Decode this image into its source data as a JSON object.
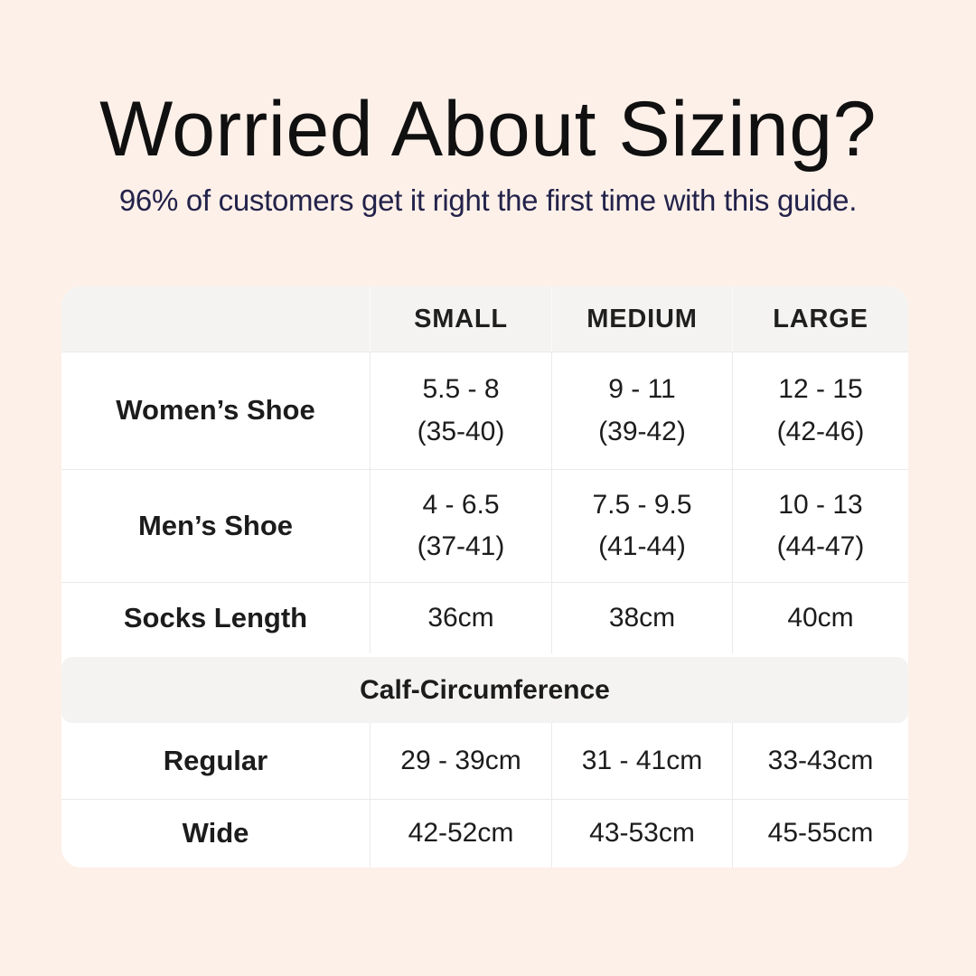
{
  "page": {
    "title": "Worried About Sizing?",
    "subtitle": "96% of customers get it right the first time with this guide.",
    "colors": {
      "background": "#fdf0e9",
      "table_background": "#ffffff",
      "header_band_background": "#f4f3f2",
      "divider": "#eceae8",
      "title_text": "#101010",
      "subtitle_text": "#22224a",
      "table_text": "#1c1c1c"
    }
  },
  "table": {
    "columns": [
      "",
      "SMALL",
      "MEDIUM",
      "LARGE"
    ],
    "rows": [
      {
        "label": "Women’s Shoe",
        "small": "5.5 - 8\n(35-40)",
        "medium": "9 - 11\n(39-42)",
        "large": "12 - 15\n(42-46)"
      },
      {
        "label": "Men’s Shoe",
        "small": "4 - 6.5\n(37-41)",
        "medium": "7.5 - 9.5\n(41-44)",
        "large": "10 - 13\n(44-47)"
      },
      {
        "label": "Socks Length",
        "small": "36cm",
        "medium": "38cm",
        "large": "40cm"
      }
    ],
    "section_header": "Calf-Circumference",
    "section_rows": [
      {
        "label": "Regular",
        "small": "29 - 39cm",
        "medium": "31 - 41cm",
        "large": "33-43cm"
      },
      {
        "label": "Wide",
        "small": "42-52cm",
        "medium": "43-53cm",
        "large": "45-55cm"
      }
    ]
  }
}
